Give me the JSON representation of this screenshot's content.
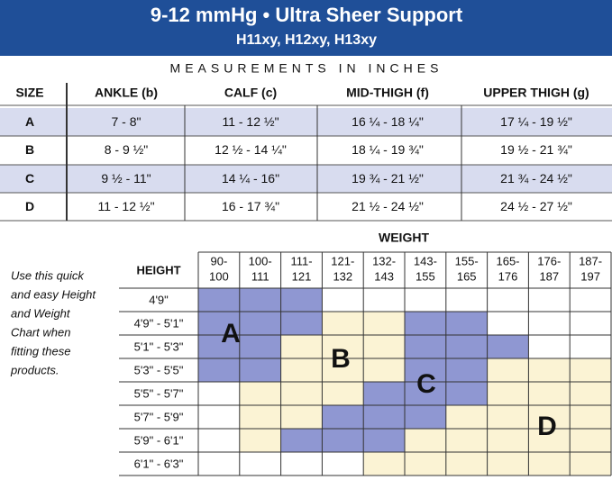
{
  "header": {
    "title": "9-12 mmHg • Ultra Sheer Support",
    "subtitle": "H11xy, H12xy, H13xy"
  },
  "measurements": {
    "caption": "MEASUREMENTS IN INCHES",
    "columns": [
      "SIZE",
      "ANKLE (b)",
      "CALF (c)",
      "MID-THIGH (f)",
      "UPPER THIGH (g)"
    ],
    "rows": [
      [
        "A",
        "7 - 8\"",
        "11 - 12 ½\"",
        "16 ¼ - 18 ¼\"",
        "17 ¼ - 19 ½\""
      ],
      [
        "B",
        "8 - 9 ½\"",
        "12 ½ - 14 ¼\"",
        "18 ¼ - 19 ¾\"",
        "19 ½ - 21 ¾\""
      ],
      [
        "C",
        "9 ½ - 11\"",
        "14 ¼ - 16\"",
        "19 ¾ - 21 ½\"",
        "21 ¾ - 24 ½\""
      ],
      [
        "D",
        "11 - 12 ½\"",
        "16 - 17 ¾\"",
        "21 ½ - 24 ½\"",
        "24 ½ - 27 ½\""
      ]
    ]
  },
  "fitting_chart": {
    "note": [
      "Use this quick",
      "and easy Height",
      "and Weight",
      "Chart when",
      "fitting these",
      "products."
    ],
    "weight_title": "WEIGHT",
    "height_title": "HEIGHT",
    "weights": [
      [
        "90-",
        "100"
      ],
      [
        "100-",
        "111"
      ],
      [
        "111-",
        "121"
      ],
      [
        "121-",
        "132"
      ],
      [
        "132-",
        "143"
      ],
      [
        "143-",
        "155"
      ],
      [
        "155-",
        "165"
      ],
      [
        "165-",
        "176"
      ],
      [
        "176-",
        "187"
      ],
      [
        "187-",
        "197"
      ]
    ],
    "heights": [
      "4'9\"",
      "4'9\" - 5'1\"",
      "5'1\" - 5'3\"",
      "5'3\" - 5'5\"",
      "5'5\" - 5'7\"",
      "5'7\" - 5'9\"",
      "5'9\" - 6'1\"",
      "6'1\" - 6'3\""
    ],
    "zone_labels": [
      "A",
      "B",
      "C",
      "D"
    ]
  }
}
